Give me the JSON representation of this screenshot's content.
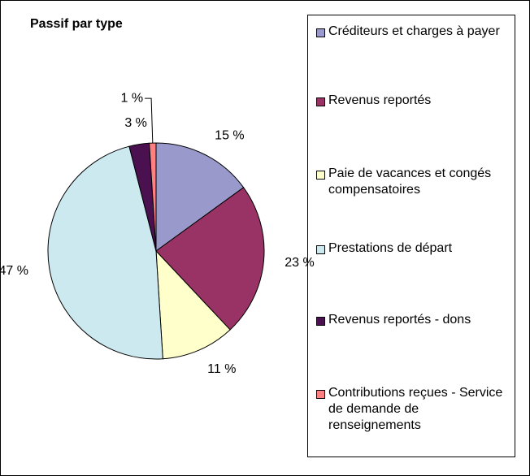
{
  "chart_data": {
    "type": "pie",
    "title": "Passif par type",
    "categories": [
      "Créditeurs et charges à payer",
      "Revenus reportés",
      "Paie de vacances et congés compensatoires",
      "Prestations de départ",
      "Revenus reportés - dons",
      "Contributions reçues - Service de demande de renseignements"
    ],
    "values": [
      15,
      23,
      11,
      47,
      3,
      1
    ],
    "value_labels": [
      "15 %",
      "23 %",
      "11 %",
      "47 %",
      "3 %",
      "1 %"
    ],
    "colors": [
      "#9999cc",
      "#993366",
      "#ffffcc",
      "#cce9f0",
      "#4a1050",
      "#ff8080"
    ],
    "legend": "right"
  }
}
